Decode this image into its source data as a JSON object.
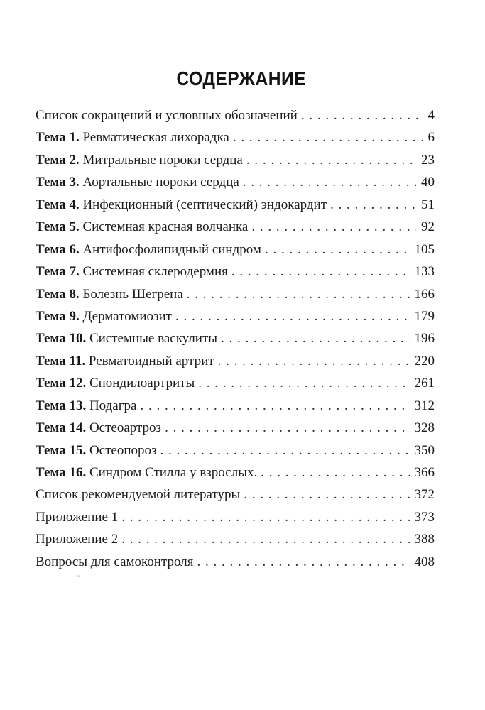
{
  "page": {
    "title": "СОДЕРЖАНИЕ"
  },
  "colors": {
    "background": "#ffffff",
    "text": "#1c1c1c"
  },
  "toc": {
    "leader_char": ".",
    "entries": [
      {
        "prefix": "",
        "label": "Список сокращений и условных обозначений",
        "page": "4"
      },
      {
        "prefix": "Тема 1.",
        "label": "Ревматическая лихорадка",
        "page": "6"
      },
      {
        "prefix": "Тема 2.",
        "label": "Митральные пороки сердца",
        "page": "23"
      },
      {
        "prefix": "Тема 3.",
        "label": "Аортальные пороки сердца",
        "page": "40"
      },
      {
        "prefix": "Тема 4.",
        "label": "Инфекционный (септический) эндокардит",
        "page": "51"
      },
      {
        "prefix": "Тема 5.",
        "label": "Системная красная волчанка",
        "page": "92"
      },
      {
        "prefix": "Тема 6.",
        "label": "Антифосфолипидный синдром",
        "page": "105"
      },
      {
        "prefix": "Тема 7.",
        "label": "Системная склеродермия",
        "page": "133"
      },
      {
        "prefix": "Тема 8.",
        "label": "Болезнь Шегрена",
        "page": "166"
      },
      {
        "prefix": "Тема 9.",
        "label": "Дерматомиозит",
        "page": "179"
      },
      {
        "prefix": "Тема 10.",
        "label": "Системные васкулиты",
        "page": "196"
      },
      {
        "prefix": "Тема 11.",
        "label": "Ревматоидный артрит",
        "page": "220"
      },
      {
        "prefix": "Тема 12.",
        "label": "Спондилоартриты",
        "page": "261"
      },
      {
        "prefix": "Тема 13.",
        "label": "Подагра",
        "page": "312"
      },
      {
        "prefix": "Тема 14.",
        "label": "Остеоартроз",
        "page": "328"
      },
      {
        "prefix": "Тема 15.",
        "label": "Остеопороз",
        "page": "350"
      },
      {
        "prefix": "Тема 16.",
        "label": "Синдром Стилла у взрослых.",
        "page": "366"
      },
      {
        "prefix": "",
        "label": "Список рекомендуемой литературы",
        "page": "372"
      },
      {
        "prefix": "",
        "label": "Приложение 1",
        "page": "373"
      },
      {
        "prefix": "",
        "label": "Приложение 2",
        "page": "388"
      },
      {
        "prefix": "",
        "label": "Вопросы для самоконтроля",
        "page": "408"
      }
    ]
  }
}
